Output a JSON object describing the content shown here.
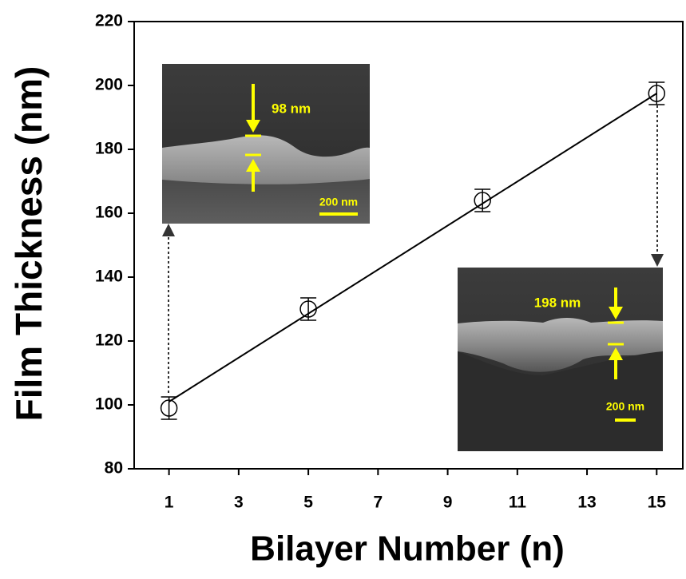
{
  "chart_data": {
    "type": "scatter",
    "xlabel": "Bilayer Number (n)",
    "ylabel": "Film Thickness (nm)",
    "x": [
      1,
      5,
      10,
      15
    ],
    "series": [
      {
        "color": "#000000",
        "values": [
          99,
          130,
          164,
          197.5
        ],
        "errors": [
          3.5,
          3.5,
          3.5,
          3.5
        ]
      }
    ],
    "fit": {
      "x": [
        1,
        15
      ],
      "values": [
        101,
        197.5
      ],
      "color": "#000000"
    },
    "xlim": [
      0,
      15.75
    ],
    "ylim": [
      80,
      220
    ],
    "xticks": [
      1,
      3,
      5,
      7,
      9,
      11,
      13,
      15
    ],
    "yticks": [
      80,
      100,
      120,
      140,
      160,
      180,
      200,
      220
    ],
    "insets": [
      {
        "thickness_label": "98 nm",
        "scale_label": "200 nm"
      },
      {
        "thickness_label": "198 nm",
        "scale_label": "200 nm"
      }
    ]
  }
}
